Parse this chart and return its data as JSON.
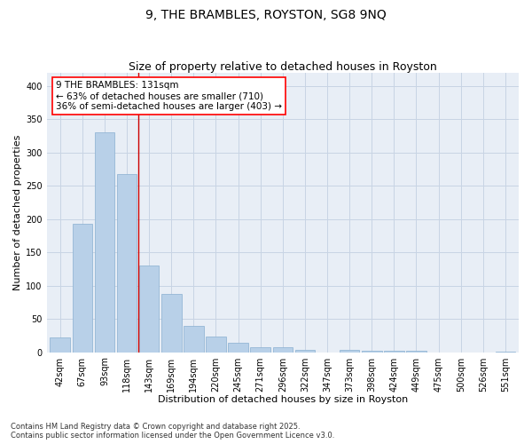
{
  "title": "9, THE BRAMBLES, ROYSTON, SG8 9NQ",
  "subtitle": "Size of property relative to detached houses in Royston",
  "xlabel": "Distribution of detached houses by size in Royston",
  "ylabel": "Number of detached properties",
  "footnote1": "Contains HM Land Registry data © Crown copyright and database right 2025.",
  "footnote2": "Contains public sector information licensed under the Open Government Licence v3.0.",
  "annotation_line1": "9 THE BRAMBLES: 131sqm",
  "annotation_line2": "← 63% of detached houses are smaller (710)",
  "annotation_line3": "36% of semi-detached houses are larger (403) →",
  "bar_color": "#b8d0e8",
  "bar_edge_color": "#8ab0d0",
  "vline_color": "#cc0000",
  "vline_x": 3.5,
  "grid_color": "#c8d4e4",
  "background_color": "#e8eef6",
  "categories": [
    "42sqm",
    "67sqm",
    "93sqm",
    "118sqm",
    "143sqm",
    "169sqm",
    "194sqm",
    "220sqm",
    "245sqm",
    "271sqm",
    "296sqm",
    "322sqm",
    "347sqm",
    "373sqm",
    "398sqm",
    "424sqm",
    "449sqm",
    "475sqm",
    "500sqm",
    "526sqm",
    "551sqm"
  ],
  "values": [
    22,
    193,
    330,
    268,
    130,
    87,
    39,
    24,
    14,
    7,
    7,
    3,
    0,
    4,
    2,
    2,
    2,
    0,
    0,
    0,
    1
  ],
  "ylim": [
    0,
    420
  ],
  "yticks": [
    0,
    50,
    100,
    150,
    200,
    250,
    300,
    350,
    400
  ],
  "title_fontsize": 10,
  "subtitle_fontsize": 9,
  "xlabel_fontsize": 8,
  "ylabel_fontsize": 8,
  "tick_fontsize": 7,
  "annotation_fontsize": 7.5,
  "footnote_fontsize": 6
}
